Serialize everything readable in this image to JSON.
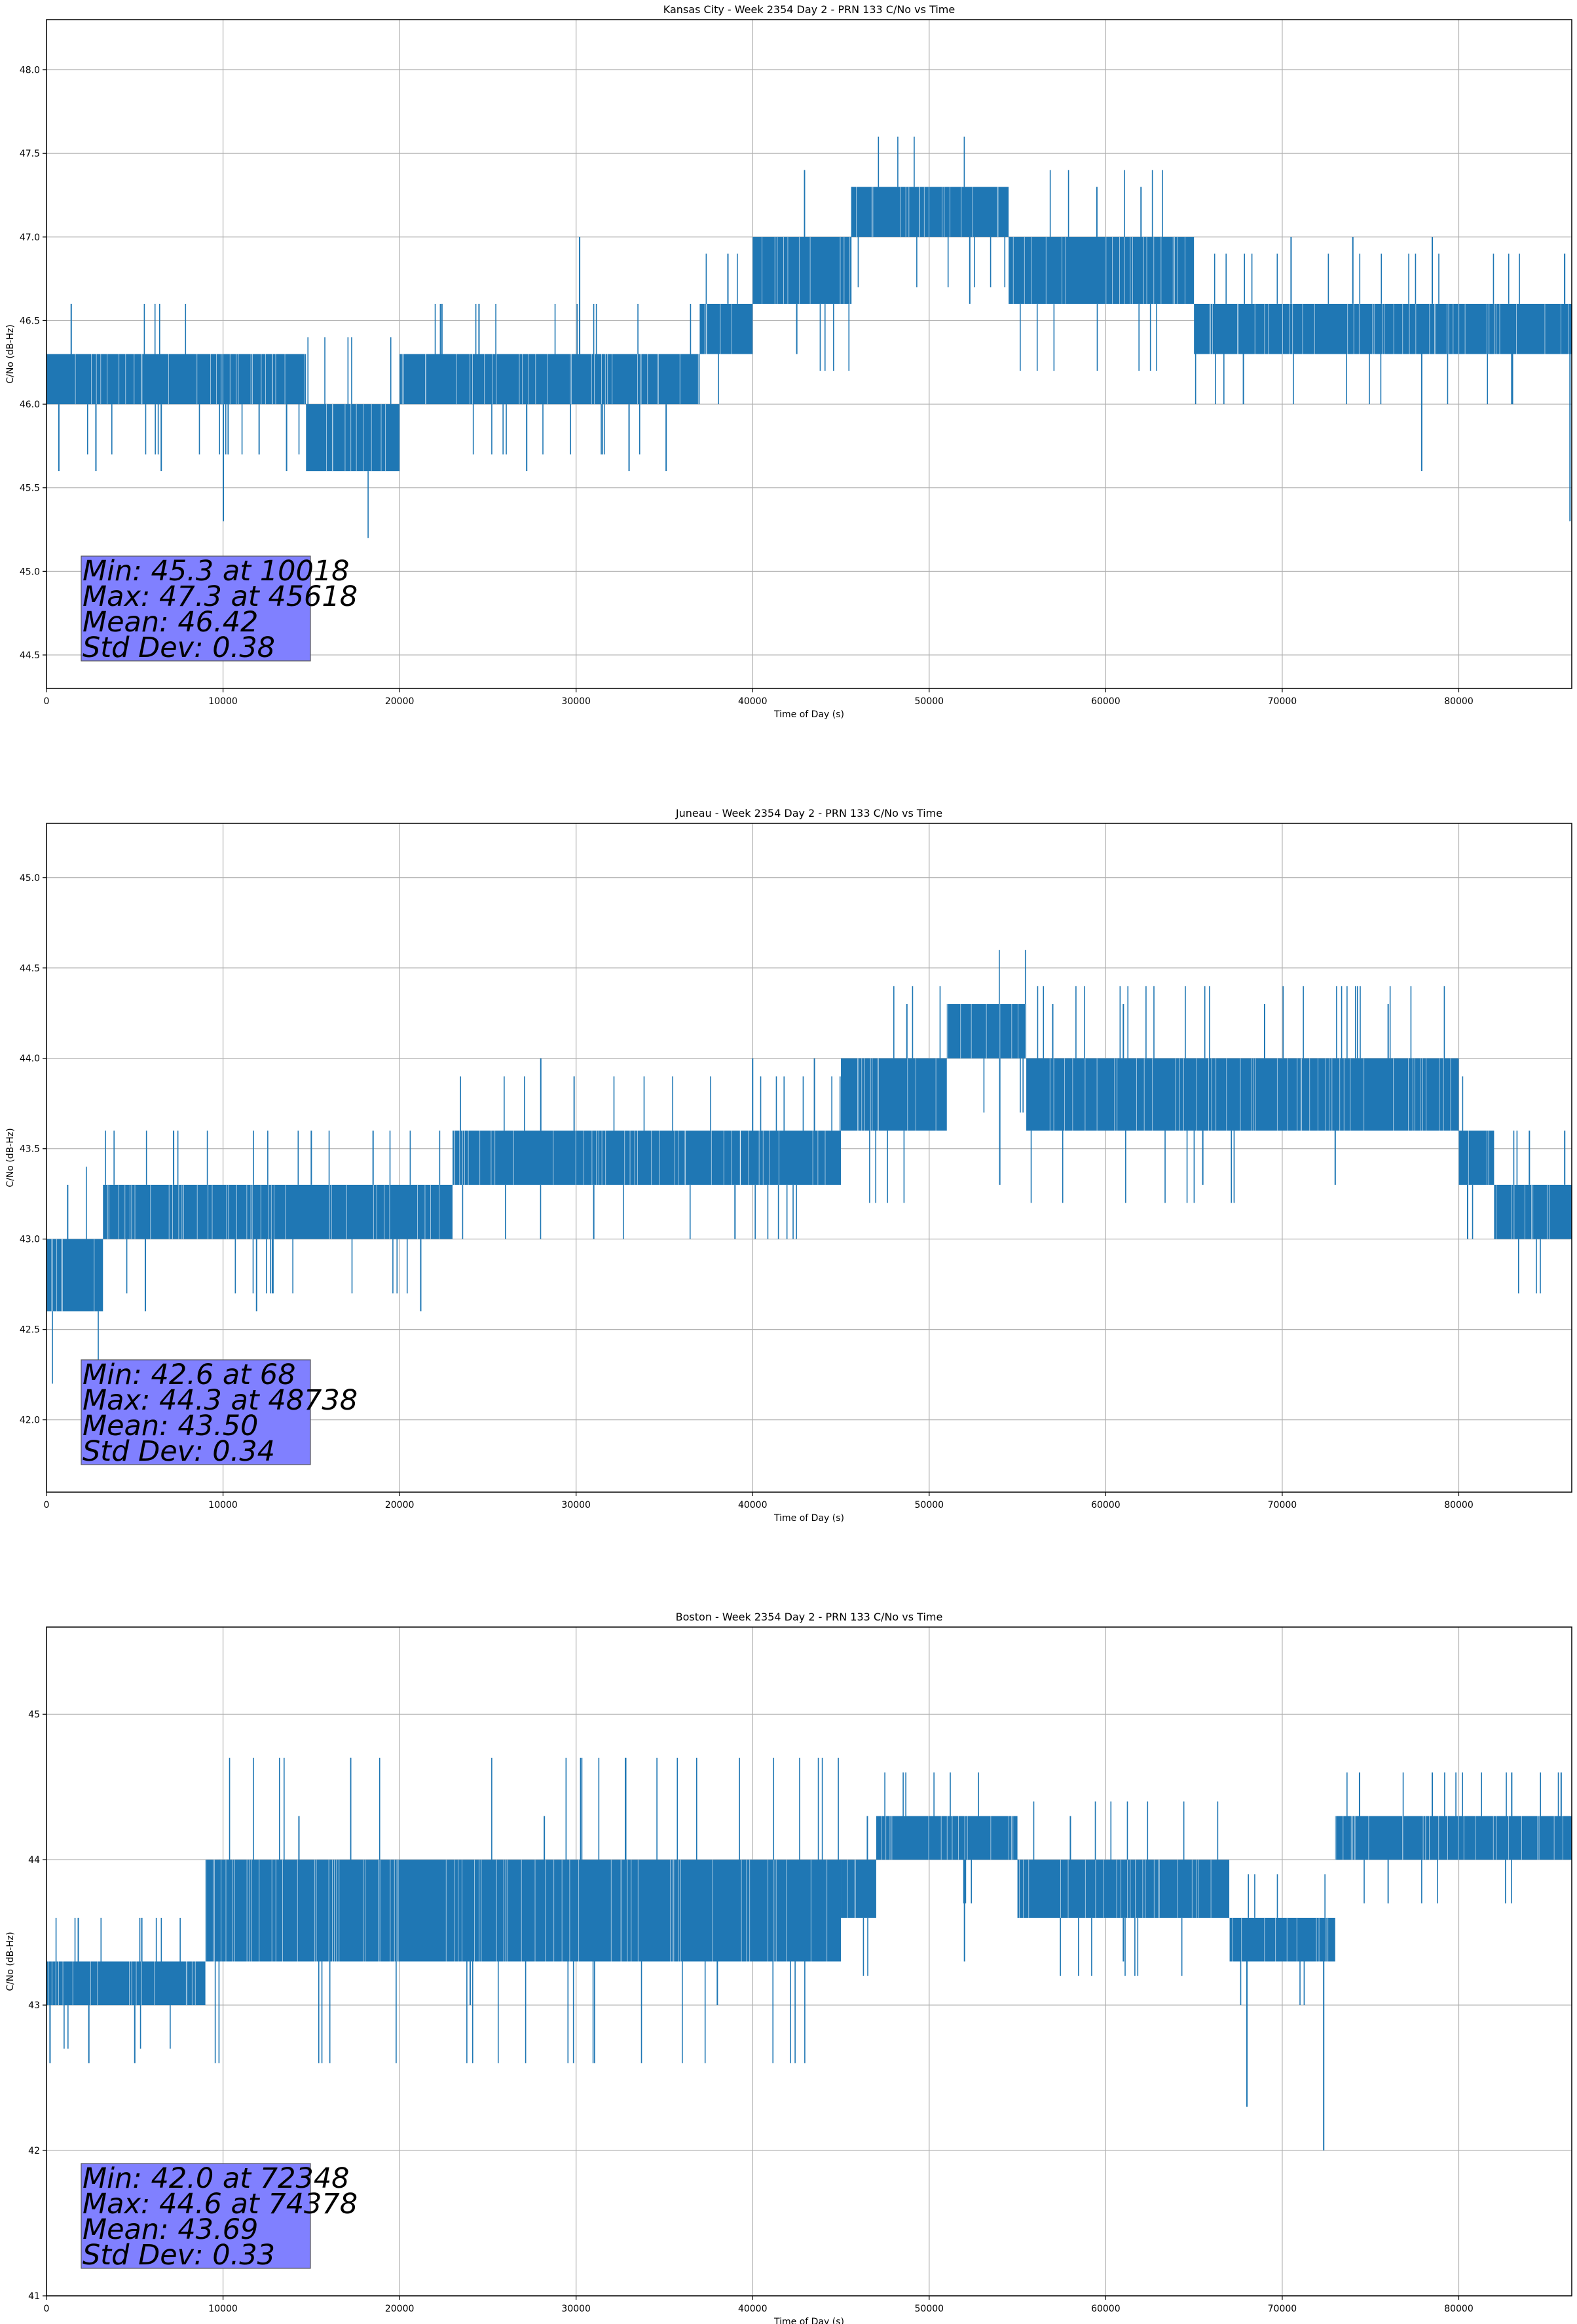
{
  "chart_data": [
    {
      "type": "line",
      "title": "Kansas City - Week 2354 Day 2 - PRN 133 C/No vs Time",
      "xlabel": "Time of Day (s)",
      "ylabel": "C/No (dB-Hz)",
      "xlim": [
        0,
        86400
      ],
      "ylim": [
        44.3,
        48.3
      ],
      "xticks": [
        0,
        10000,
        20000,
        30000,
        40000,
        50000,
        60000,
        70000,
        80000
      ],
      "xtick_labels": [
        "0",
        "10000",
        "20000",
        "30000",
        "40000",
        "50000",
        "60000",
        "70000",
        "80000"
      ],
      "yticks": [
        44.5,
        45.0,
        45.5,
        46.0,
        46.5,
        47.0,
        47.5,
        48.0
      ],
      "ytick_labels": [
        "44.5",
        "45.0",
        "45.5",
        "46.0",
        "46.5",
        "47.0",
        "47.5",
        "48.0"
      ],
      "grid": true,
      "color": "#1f77b4",
      "series": [
        {
          "name": "C/No",
          "segments": [
            {
              "x0": 0,
              "x1": 14700,
              "lo": 46.0,
              "hi": 46.3
            },
            {
              "x0": 14700,
              "x1": 20000,
              "lo": 45.6,
              "hi": 46.0
            },
            {
              "x0": 20000,
              "x1": 37000,
              "lo": 46.0,
              "hi": 46.3
            },
            {
              "x0": 37000,
              "x1": 40000,
              "lo": 46.3,
              "hi": 46.6
            },
            {
              "x0": 40000,
              "x1": 45600,
              "lo": 46.6,
              "hi": 47.0
            },
            {
              "x0": 45600,
              "x1": 54500,
              "lo": 47.0,
              "hi": 47.3
            },
            {
              "x0": 54500,
              "x1": 65000,
              "lo": 46.6,
              "hi": 47.0
            },
            {
              "x0": 65000,
              "x1": 86400,
              "lo": 46.3,
              "hi": 46.6
            }
          ],
          "spikes": [
            {
              "x": 700,
              "y": 45.6
            },
            {
              "x": 1400,
              "y": 46.6
            },
            {
              "x": 2800,
              "y": 45.6
            },
            {
              "x": 6500,
              "y": 45.6
            },
            {
              "x": 10018,
              "y": 45.3
            },
            {
              "x": 13600,
              "y": 45.6
            },
            {
              "x": 22400,
              "y": 46.6
            },
            {
              "x": 24500,
              "y": 46.6
            },
            {
              "x": 27200,
              "y": 45.6
            },
            {
              "x": 30200,
              "y": 47.0
            },
            {
              "x": 33000,
              "y": 45.6
            },
            {
              "x": 35100,
              "y": 45.6
            },
            {
              "x": 38600,
              "y": 46.9
            },
            {
              "x": 42500,
              "y": 46.3
            },
            {
              "x": 45618,
              "y": 47.3
            },
            {
              "x": 52300,
              "y": 46.6
            },
            {
              "x": 58000,
              "y": 46.6
            },
            {
              "x": 59500,
              "y": 47.3
            },
            {
              "x": 62000,
              "y": 47.3
            },
            {
              "x": 67800,
              "y": 46.0
            },
            {
              "x": 70500,
              "y": 47.0
            },
            {
              "x": 74000,
              "y": 47.0
            },
            {
              "x": 77900,
              "y": 45.6
            },
            {
              "x": 78500,
              "y": 47.0
            },
            {
              "x": 83000,
              "y": 46.0
            },
            {
              "x": 86300,
              "y": 45.3
            }
          ]
        }
      ],
      "stats_box": {
        "lines": [
          "Min: 45.3 at 10018",
          "Max: 47.3 at 45618",
          "Mean: 46.42",
          "Std Dev: 0.38"
        ],
        "color": "#8080ff"
      }
    },
    {
      "type": "line",
      "title": "Juneau - Week 2354 Day 2 - PRN 133 C/No vs Time",
      "xlabel": "Time of Day (s)",
      "ylabel": "C/No (dB-Hz)",
      "xlim": [
        0,
        86400
      ],
      "ylim": [
        41.6,
        45.3
      ],
      "xticks": [
        0,
        10000,
        20000,
        30000,
        40000,
        50000,
        60000,
        70000,
        80000
      ],
      "xtick_labels": [
        "0",
        "10000",
        "20000",
        "30000",
        "40000",
        "50000",
        "60000",
        "70000",
        "80000"
      ],
      "yticks": [
        42.0,
        42.5,
        43.0,
        43.5,
        44.0,
        44.5,
        45.0
      ],
      "ytick_labels": [
        "42.0",
        "42.5",
        "43.0",
        "43.5",
        "44.0",
        "44.5",
        "45.0"
      ],
      "grid": true,
      "color": "#1f77b4",
      "series": [
        {
          "name": "C/No",
          "segments": [
            {
              "x0": 0,
              "x1": 3200,
              "lo": 42.6,
              "hi": 43.0
            },
            {
              "x0": 3200,
              "x1": 23000,
              "lo": 43.0,
              "hi": 43.3
            },
            {
              "x0": 23000,
              "x1": 45000,
              "lo": 43.3,
              "hi": 43.6
            },
            {
              "x0": 45000,
              "x1": 51000,
              "lo": 43.6,
              "hi": 44.0
            },
            {
              "x0": 51000,
              "x1": 55500,
              "lo": 44.0,
              "hi": 44.3
            },
            {
              "x0": 55500,
              "x1": 80000,
              "lo": 43.6,
              "hi": 44.0
            },
            {
              "x0": 80000,
              "x1": 82000,
              "lo": 43.3,
              "hi": 43.6
            },
            {
              "x0": 82000,
              "x1": 86400,
              "lo": 43.0,
              "hi": 43.3
            }
          ],
          "spikes": [
            {
              "x": 68,
              "y": 42.6
            },
            {
              "x": 1200,
              "y": 43.3
            },
            {
              "x": 5600,
              "y": 42.6
            },
            {
              "x": 7200,
              "y": 43.6
            },
            {
              "x": 11900,
              "y": 42.6
            },
            {
              "x": 15000,
              "y": 43.6
            },
            {
              "x": 18500,
              "y": 43.6
            },
            {
              "x": 21200,
              "y": 42.6
            },
            {
              "x": 28000,
              "y": 44.0
            },
            {
              "x": 31000,
              "y": 43.0
            },
            {
              "x": 39000,
              "y": 43.0
            },
            {
              "x": 40000,
              "y": 44.0
            },
            {
              "x": 43500,
              "y": 44.0
            },
            {
              "x": 48738,
              "y": 44.3
            },
            {
              "x": 54000,
              "y": 43.3
            },
            {
              "x": 57000,
              "y": 44.3
            },
            {
              "x": 61000,
              "y": 44.3
            },
            {
              "x": 65500,
              "y": 43.3
            },
            {
              "x": 69000,
              "y": 44.3
            },
            {
              "x": 73000,
              "y": 43.3
            },
            {
              "x": 76000,
              "y": 44.3
            },
            {
              "x": 80500,
              "y": 43.0
            },
            {
              "x": 84000,
              "y": 43.6
            },
            {
              "x": 86000,
              "y": 43.6
            }
          ]
        }
      ],
      "stats_box": {
        "lines": [
          "Min: 42.6 at 68",
          "Max: 44.3 at 48738",
          "Mean: 43.50",
          "Std Dev: 0.34"
        ],
        "color": "#8080ff"
      }
    },
    {
      "type": "line",
      "title": "Boston - Week 2354 Day 2 - PRN 133 C/No vs Time",
      "xlabel": "Time of Day (s)",
      "ylabel": "C/No (dB-Hz)",
      "xlim": [
        0,
        86400
      ],
      "ylim": [
        41.0,
        45.6
      ],
      "xticks": [
        0,
        10000,
        20000,
        30000,
        40000,
        50000,
        60000,
        70000,
        80000
      ],
      "xtick_labels": [
        "0",
        "10000",
        "20000",
        "30000",
        "40000",
        "50000",
        "60000",
        "70000",
        "80000"
      ],
      "yticks": [
        41,
        42,
        43,
        44,
        45
      ],
      "ytick_labels": [
        "41",
        "42",
        "43",
        "44",
        "45"
      ],
      "grid": true,
      "color": "#1f77b4",
      "series": [
        {
          "name": "C/No",
          "segments": [
            {
              "x0": 0,
              "x1": 9000,
              "lo": 43.0,
              "hi": 43.3
            },
            {
              "x0": 9000,
              "x1": 45000,
              "lo": 43.3,
              "hi": 44.0
            },
            {
              "x0": 45000,
              "x1": 47000,
              "lo": 43.6,
              "hi": 44.0
            },
            {
              "x0": 47000,
              "x1": 55000,
              "lo": 44.0,
              "hi": 44.3
            },
            {
              "x0": 55000,
              "x1": 67000,
              "lo": 43.6,
              "hi": 44.0
            },
            {
              "x0": 67000,
              "x1": 73000,
              "lo": 43.3,
              "hi": 43.6
            },
            {
              "x0": 73000,
              "x1": 86400,
              "lo": 44.0,
              "hi": 44.3
            }
          ],
          "spikes": [
            {
              "x": 200,
              "y": 42.6
            },
            {
              "x": 2400,
              "y": 42.6
            },
            {
              "x": 5000,
              "y": 42.6
            },
            {
              "x": 1800,
              "y": 43.6
            },
            {
              "x": 5400,
              "y": 43.6
            },
            {
              "x": 9800,
              "y": 44.0
            },
            {
              "x": 14300,
              "y": 44.3
            },
            {
              "x": 24000,
              "y": 43.0
            },
            {
              "x": 28200,
              "y": 44.3
            },
            {
              "x": 38000,
              "y": 43.0
            },
            {
              "x": 46500,
              "y": 44.3
            },
            {
              "x": 52000,
              "y": 43.3
            },
            {
              "x": 58000,
              "y": 44.3
            },
            {
              "x": 61000,
              "y": 43.3
            },
            {
              "x": 68000,
              "y": 42.3
            },
            {
              "x": 72348,
              "y": 42.0
            },
            {
              "x": 74378,
              "y": 44.6
            },
            {
              "x": 78500,
              "y": 44.6
            },
            {
              "x": 83000,
              "y": 44.6
            },
            {
              "x": 85800,
              "y": 44.6
            }
          ]
        }
      ],
      "stats_box": {
        "lines": [
          "Min: 42.0 at 72348",
          "Max: 44.6 at 74378",
          "Mean: 43.69",
          "Std Dev: 0.33"
        ],
        "color": "#8080ff"
      }
    }
  ]
}
